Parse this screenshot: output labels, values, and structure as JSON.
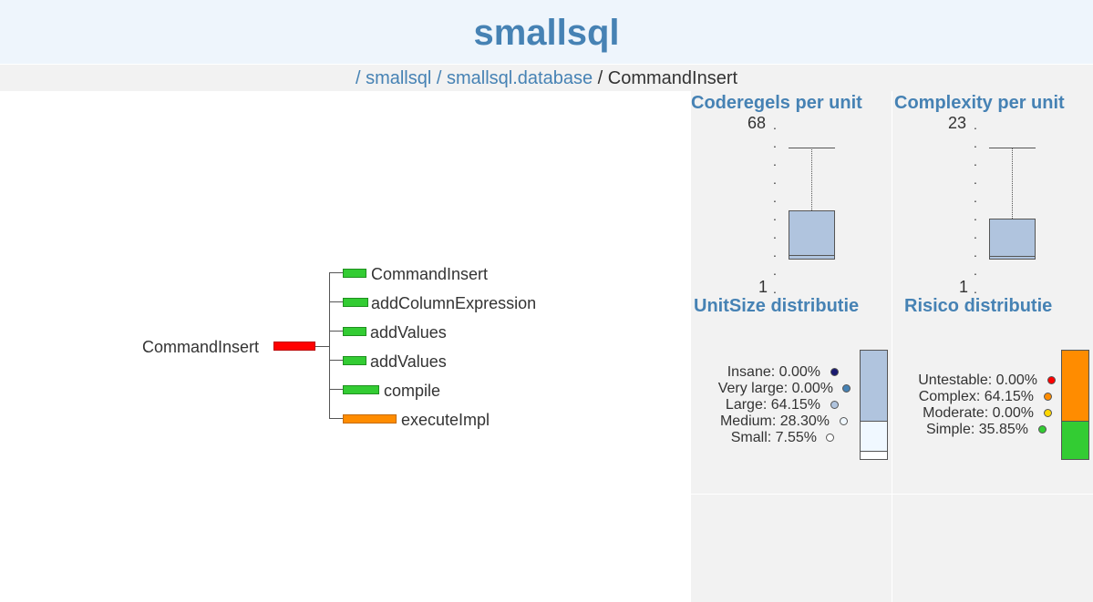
{
  "header": {
    "title": "smallsql"
  },
  "breadcrumb": {
    "items": [
      "/ ",
      "smallsql",
      " / ",
      "smallsql.database",
      " / ",
      "CommandInsert"
    ]
  },
  "tree": {
    "root": "CommandInsert",
    "root_color": "#ff0000",
    "children": [
      {
        "label": "CommandInsert",
        "risk": "simple"
      },
      {
        "label": "addColumnExpression",
        "risk": "simple"
      },
      {
        "label": "addValues",
        "risk": "simple"
      },
      {
        "label": "addValues",
        "risk": "simple"
      },
      {
        "label": "compile",
        "risk": "simple"
      },
      {
        "label": "executeImpl",
        "risk": "complex"
      }
    ]
  },
  "codelines": {
    "title": "Coderegels per unit",
    "max_label": "68",
    "min_label": "1"
  },
  "complexity": {
    "title": "Complexity per unit",
    "max_label": "23",
    "min_label": "1"
  },
  "unitsize": {
    "title": "UnitSize distributie",
    "items": [
      {
        "label": "Insane: 0.00%",
        "color": "#191970"
      },
      {
        "label": "Very large: 0.00%",
        "color": "#4682b4"
      },
      {
        "label": "Large: 64.15%",
        "color": "#b0c4de"
      },
      {
        "label": "Medium: 28.30%",
        "color": "#f0f8ff"
      },
      {
        "label": "Small: 7.55%",
        "color": "#ffffff"
      }
    ]
  },
  "risico": {
    "title": "Risico distributie",
    "items": [
      {
        "label": "Untestable: 0.00%",
        "color": "#ff0000"
      },
      {
        "label": "Complex: 64.15%",
        "color": "#ff8c00"
      },
      {
        "label": "Moderate: 0.00%",
        "color": "#ffd700"
      },
      {
        "label": "Simple: 35.85%",
        "color": "#33cc33"
      }
    ]
  }
}
